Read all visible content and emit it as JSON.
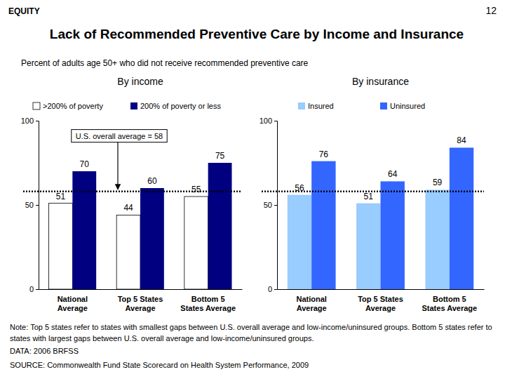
{
  "page": {
    "section": "EQUITY",
    "number": "12",
    "title": "Lack of Recommended Preventive Care by Income and Insurance",
    "subtitle": "Percent of adults age 50+ who did not receive recommended preventive care",
    "note": "Note: Top 5 states refer to states with smallest gaps between U.S. overall average and low-income/uninsured groups. Bottom 5 states refer to states with largest gaps between U.S. overall average and low-income/uninsured groups.",
    "data_source": "DATA: 2006 BRFSS",
    "source": "SOURCE: Commonwealth Fund State Scorecard on Health System Performance, 2009"
  },
  "chart_data": [
    {
      "type": "bar",
      "title": "By income",
      "categories": [
        "National\nAverage",
        "Top 5 States\nAverage",
        "Bottom 5\nStates Average"
      ],
      "series": [
        {
          "name": ">200% of poverty",
          "color": "#ffffff",
          "values": [
            51,
            44,
            55
          ]
        },
        {
          "name": "200% of poverty or less",
          "color": "#000080",
          "values": [
            70,
            60,
            75
          ]
        }
      ],
      "reference": {
        "value": 58,
        "label": "U.S. overall average = 58"
      },
      "ylim": [
        0,
        100
      ],
      "yticks": [
        0,
        50,
        100
      ],
      "grid": false,
      "legend": "top",
      "data_labels": true
    },
    {
      "type": "bar",
      "title": "By insurance",
      "categories": [
        "National\nAverage",
        "Top 5 States\nAverage",
        "Bottom 5\nStates Average"
      ],
      "series": [
        {
          "name": "Insured",
          "color": "#99ccff",
          "values": [
            56,
            51,
            59
          ]
        },
        {
          "name": "Uninsured",
          "color": "#3366ff",
          "values": [
            76,
            64,
            84
          ]
        }
      ],
      "reference": {
        "value": 58
      },
      "ylim": [
        0,
        100
      ],
      "yticks": [
        0,
        50,
        100
      ],
      "grid": false,
      "legend": "top",
      "data_labels": true
    }
  ]
}
